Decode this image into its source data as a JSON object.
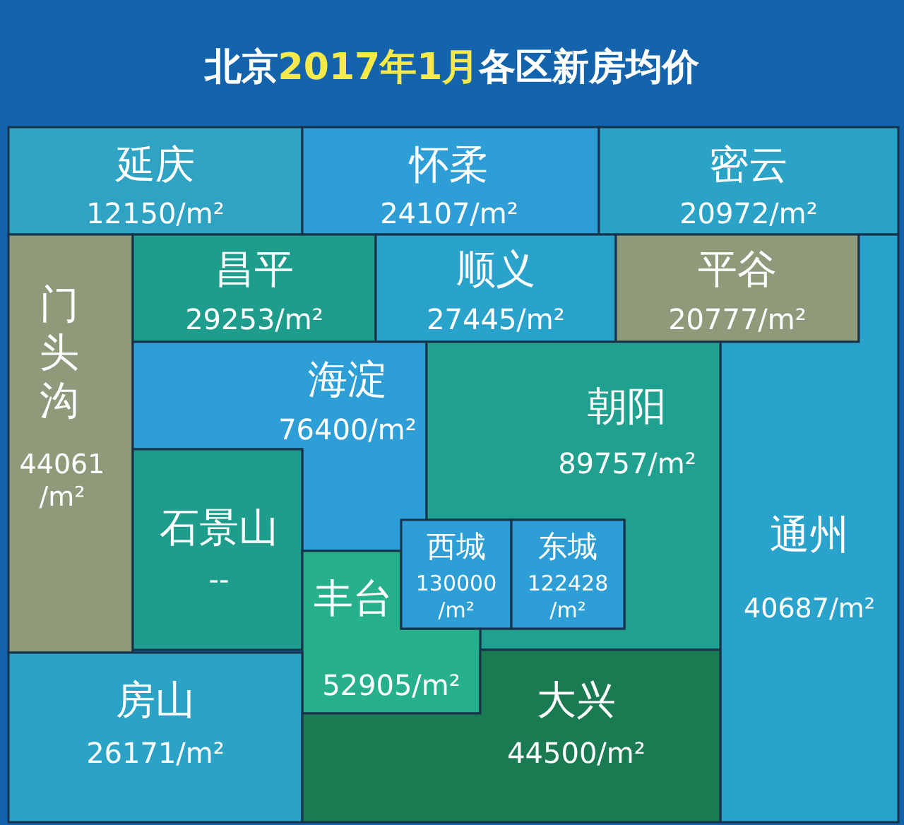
{
  "chart_data": {
    "type": "other",
    "title": "北京2017年1月各区新房均价",
    "categories": [
      "延庆",
      "怀柔",
      "密云",
      "门头沟",
      "昌平",
      "顺义",
      "平谷",
      "通州",
      "海淀",
      "朝阳",
      "石景山",
      "丰台",
      "西城",
      "东城",
      "房山",
      "大兴"
    ],
    "values": [
      12150,
      24107,
      20972,
      44061,
      29253,
      27445,
      20777,
      40687,
      76400,
      89757,
      null,
      52905,
      130000,
      122428,
      26171,
      44500
    ],
    "value_labels": [
      "12150/m²",
      "24107/m²",
      "20972/m²",
      "44061/m²",
      "29253/m²",
      "27445/m²",
      "20777/m²",
      "40687/m²",
      "76400/m²",
      "89757/m²",
      "--",
      "52905/m²",
      "130000/m²",
      "122428/m²",
      "26171/m²",
      "44500/m²"
    ],
    "colors": [
      "#2ea3c4",
      "#2e9fd6",
      "#2aa3c6",
      "#8f9a7a",
      "#1e9c8c",
      "#2aa3cc",
      "#8f9a7a",
      "#2aa3cc",
      "#2e9fd6",
      "#20a08e",
      "#1e9c8c",
      "#27b08c",
      "#2e9fd6",
      "#2e9fd6",
      "#2aa3c6",
      "#1a7a52"
    ]
  }
}
